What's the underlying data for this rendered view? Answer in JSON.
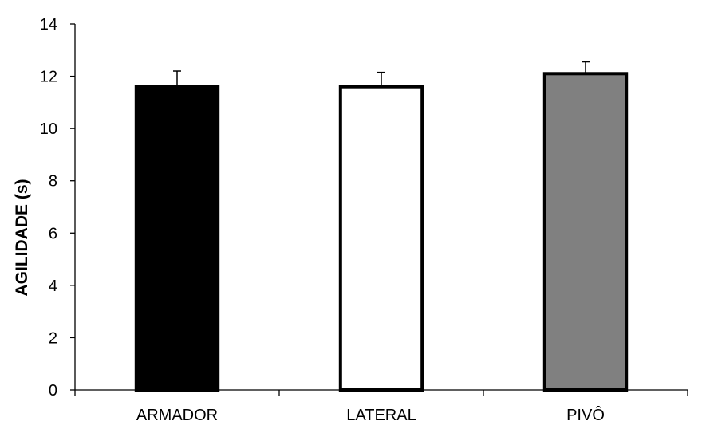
{
  "chart_data": {
    "type": "bar",
    "title": "",
    "xlabel": "",
    "ylabel": "AGILIDADE (s)",
    "categories": [
      "ARMADOR",
      "LATERAL",
      "PIVÔ"
    ],
    "values": [
      11.6,
      11.6,
      12.1
    ],
    "errors": [
      0.6,
      0.55,
      0.45
    ],
    "ylim": [
      0,
      14
    ],
    "yticks": [
      0,
      2,
      4,
      6,
      8,
      10,
      12,
      14
    ],
    "grid": false,
    "legend": "none",
    "bar_colors": [
      "#000000",
      "#ffffff",
      "#808080"
    ],
    "bar_edge_color": "#000000"
  }
}
